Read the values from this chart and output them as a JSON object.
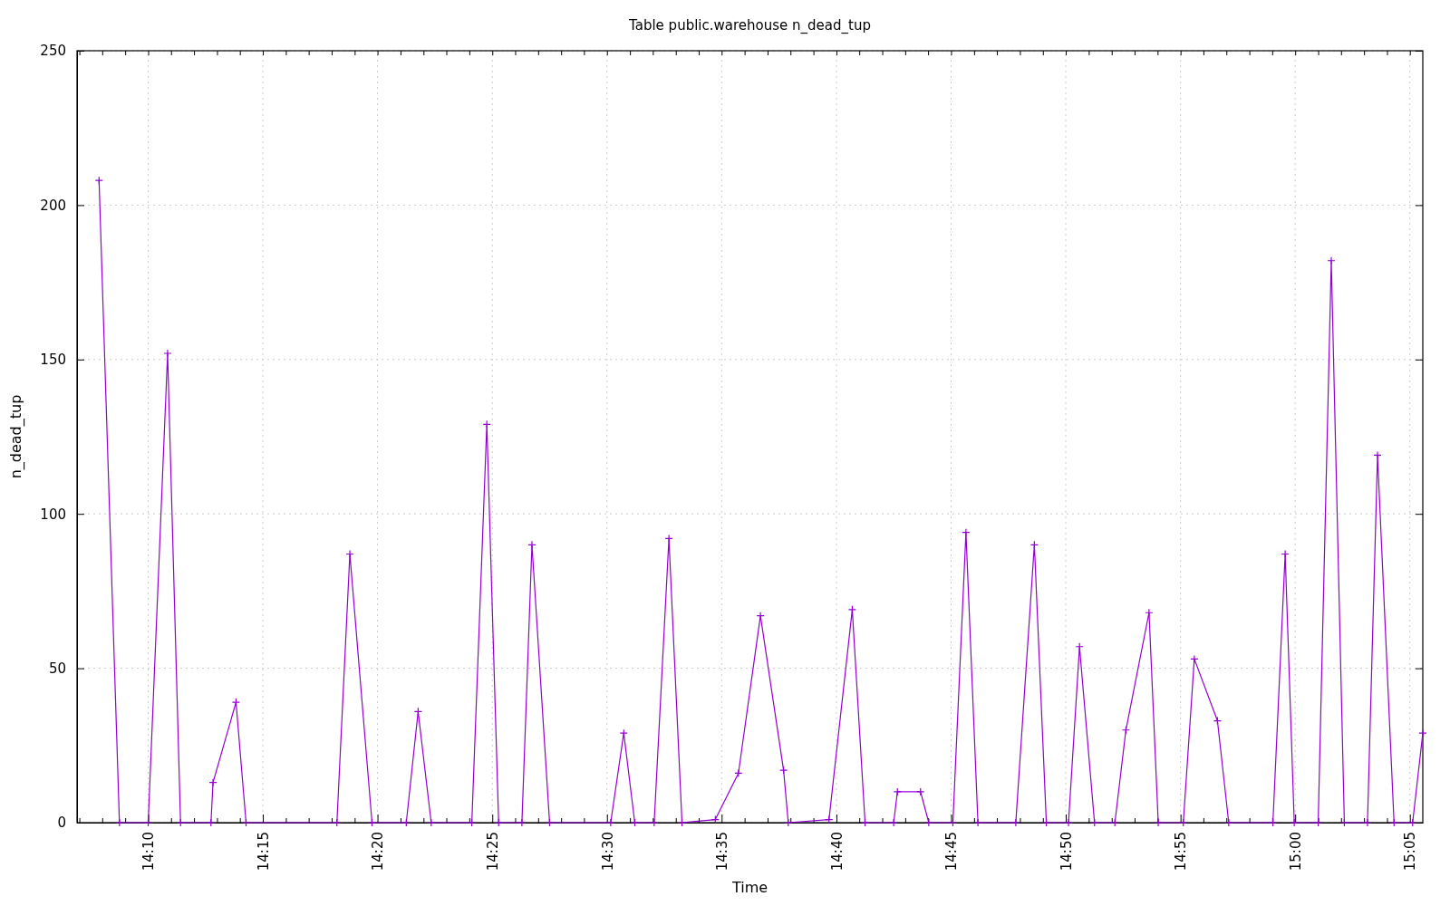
{
  "chart_data": {
    "type": "line",
    "title": "Table public.warehouse n_dead_tup",
    "xlabel": "Time",
    "ylabel": "n_dead_tup",
    "x": [
      14.131,
      14.1458,
      14.1667,
      14.1808,
      14.1902,
      14.2123,
      14.2138,
      14.2305,
      14.2378,
      14.3038,
      14.3132,
      14.3293,
      14.3542,
      14.3628,
      14.3723,
      14.4018,
      14.4127,
      14.4213,
      14.4382,
      14.4455,
      14.4583,
      14.5027,
      14.5122,
      14.5202,
      14.5343,
      14.545,
      14.5545,
      14.5787,
      14.5955,
      14.6115,
      14.6283,
      14.6317,
      14.6613,
      14.6782,
      14.6875,
      14.7083,
      14.711,
      14.7278,
      14.7338,
      14.7513,
      14.7608,
      14.7695,
      14.797,
      14.8105,
      14.8192,
      14.8353,
      14.8433,
      14.8542,
      14.869,
      14.877,
      14.8938,
      14.9005,
      14.9187,
      14.9267,
      14.9435,
      14.9517,
      14.9838,
      14.9927,
      14.9993,
      15.0167,
      15.0262,
      15.0357,
      15.0525,
      15.0598,
      15.0718,
      15.0853,
      15.0927
    ],
    "series": [
      {
        "color": "#9400d3",
        "values": [
          208,
          0,
          0,
          152,
          0,
          0,
          13,
          39,
          0,
          0,
          87,
          0,
          0,
          36,
          0,
          0,
          129,
          0,
          0,
          90,
          0,
          0,
          29,
          0,
          0,
          92,
          0,
          1,
          16,
          67,
          17,
          0,
          1,
          69,
          0,
          0,
          10,
          10,
          0,
          0,
          94,
          0,
          0,
          90,
          0,
          0,
          57,
          0,
          0,
          30,
          68,
          0,
          0,
          53,
          33,
          0,
          0,
          87,
          0,
          0,
          182,
          0,
          0,
          119,
          0,
          0,
          29
        ]
      }
    ],
    "xlim": [
      14.115,
      15.0927
    ],
    "xticks": [
      {
        "value": 14.1167,
        "label": null
      },
      {
        "value": 14.1333,
        "label": null
      },
      {
        "value": 14.15,
        "label": null
      },
      {
        "value": 14.1667,
        "label": "14:10"
      },
      {
        "value": 14.1833,
        "label": null
      },
      {
        "value": 14.2,
        "label": null
      },
      {
        "value": 14.2167,
        "label": null
      },
      {
        "value": 14.2333,
        "label": null
      },
      {
        "value": 14.25,
        "label": "14:15"
      },
      {
        "value": 14.2667,
        "label": null
      },
      {
        "value": 14.2833,
        "label": null
      },
      {
        "value": 14.3,
        "label": null
      },
      {
        "value": 14.3167,
        "label": null
      },
      {
        "value": 14.3333,
        "label": "14:20"
      },
      {
        "value": 14.35,
        "label": null
      },
      {
        "value": 14.3667,
        "label": null
      },
      {
        "value": 14.3833,
        "label": null
      },
      {
        "value": 14.4,
        "label": null
      },
      {
        "value": 14.4167,
        "label": "14:25"
      },
      {
        "value": 14.4333,
        "label": null
      },
      {
        "value": 14.45,
        "label": null
      },
      {
        "value": 14.4667,
        "label": null
      },
      {
        "value": 14.4833,
        "label": null
      },
      {
        "value": 14.5,
        "label": "14:30"
      },
      {
        "value": 14.5167,
        "label": null
      },
      {
        "value": 14.5333,
        "label": null
      },
      {
        "value": 14.55,
        "label": null
      },
      {
        "value": 14.5667,
        "label": null
      },
      {
        "value": 14.5833,
        "label": "14:35"
      },
      {
        "value": 14.6,
        "label": null
      },
      {
        "value": 14.6167,
        "label": null
      },
      {
        "value": 14.6333,
        "label": null
      },
      {
        "value": 14.65,
        "label": null
      },
      {
        "value": 14.6667,
        "label": "14:40"
      },
      {
        "value": 14.6833,
        "label": null
      },
      {
        "value": 14.7,
        "label": null
      },
      {
        "value": 14.7167,
        "label": null
      },
      {
        "value": 14.7333,
        "label": null
      },
      {
        "value": 14.75,
        "label": "14:45"
      },
      {
        "value": 14.7667,
        "label": null
      },
      {
        "value": 14.7833,
        "label": null
      },
      {
        "value": 14.8,
        "label": null
      },
      {
        "value": 14.8167,
        "label": null
      },
      {
        "value": 14.8333,
        "label": "14:50"
      },
      {
        "value": 14.85,
        "label": null
      },
      {
        "value": 14.8667,
        "label": null
      },
      {
        "value": 14.8833,
        "label": null
      },
      {
        "value": 14.9,
        "label": null
      },
      {
        "value": 14.9167,
        "label": "14:55"
      },
      {
        "value": 14.9333,
        "label": null
      },
      {
        "value": 14.95,
        "label": null
      },
      {
        "value": 14.9667,
        "label": null
      },
      {
        "value": 14.9833,
        "label": null
      },
      {
        "value": 15.0,
        "label": "15:00"
      },
      {
        "value": 15.0167,
        "label": null
      },
      {
        "value": 15.0333,
        "label": null
      },
      {
        "value": 15.05,
        "label": null
      },
      {
        "value": 15.0667,
        "label": null
      },
      {
        "value": 15.0833,
        "label": "15:05"
      }
    ],
    "ylim": [
      0,
      250
    ],
    "yticks": [
      0,
      50,
      100,
      150,
      200,
      250
    ],
    "grid": true,
    "marker": "cross",
    "line_style": "solid"
  }
}
